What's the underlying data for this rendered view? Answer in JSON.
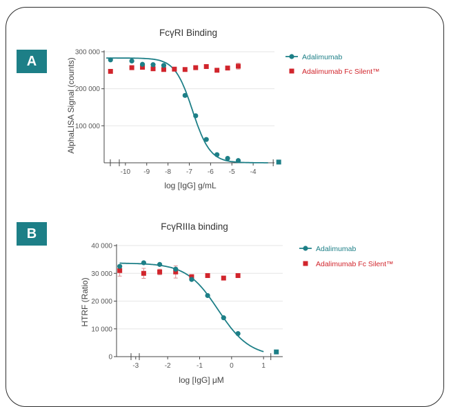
{
  "panels": {
    "a_label": "A",
    "b_label": "B"
  },
  "colors": {
    "badge": "#1d7f87",
    "teal": "#1d7f87",
    "red": "#d1252c"
  },
  "chart_data": [
    {
      "id": "A",
      "type": "scatter",
      "title": "FcγRI Binding",
      "xlabel": "log [IgG] g/mL",
      "ylabel": "AlphaLISA Signal (counts)",
      "xlim": [
        -11,
        -3
      ],
      "ylim": [
        0,
        300000
      ],
      "xticks": [
        -10,
        -9,
        -8,
        -7,
        -6,
        -5,
        -4
      ],
      "yticks": [
        100000,
        200000,
        300000
      ],
      "ytick_labels": [
        "100 000",
        "200 000",
        "300 000"
      ],
      "grid": true,
      "legend": "top-right",
      "series": [
        {
          "name": "Adalimumab",
          "marker": "circle",
          "fit_curve": true,
          "x": [
            -10.7,
            -9.7,
            -9.2,
            -8.7,
            -8.2,
            -7.2,
            -6.7,
            -6.2,
            -5.7,
            -5.2,
            -4.7
          ],
          "y": [
            278000,
            275000,
            266000,
            265000,
            263000,
            182000,
            127000,
            63000,
            22000,
            12000,
            6000
          ],
          "baseline_point": {
            "x": -2.8,
            "y": 2000
          }
        },
        {
          "name": "Adalimumab Fc Silent™",
          "marker": "square",
          "x": [
            -10.7,
            -9.7,
            -9.2,
            -8.7,
            -8.2,
            -7.7,
            -7.2,
            -6.7,
            -6.2,
            -5.7,
            -5.2,
            -4.7
          ],
          "y": [
            247000,
            257000,
            258000,
            254000,
            252000,
            253000,
            252000,
            257000,
            260000,
            250000,
            256000,
            261000
          ],
          "error": [
            0,
            3000,
            0,
            0,
            0,
            0,
            0,
            0,
            0,
            0,
            0,
            8000
          ]
        }
      ]
    },
    {
      "id": "B",
      "type": "scatter",
      "title": "FcγRIIIa binding",
      "xlabel": "log [IgG] μM",
      "ylabel": "HTRF (Ratio)",
      "xlim": [
        -3.6,
        1.6
      ],
      "ylim": [
        0,
        40000
      ],
      "xticks": [
        -3,
        -2,
        -1,
        0,
        1
      ],
      "yticks": [
        0,
        10000,
        20000,
        30000,
        40000
      ],
      "ytick_labels": [
        "0",
        "10 000",
        "20 000",
        "30 000",
        "40 000"
      ],
      "grid": true,
      "legend": "top-right",
      "series": [
        {
          "name": "Adalimumab",
          "marker": "circle",
          "fit_curve": true,
          "x": [
            -3.5,
            -2.75,
            -2.25,
            -1.75,
            -1.25,
            -0.75,
            -0.25,
            0.2
          ],
          "y": [
            32500,
            33800,
            33200,
            31500,
            27800,
            22000,
            14000,
            8300
          ],
          "baseline_point": {
            "x": 1.4,
            "y": 1700
          }
        },
        {
          "name": "Adalimumab Fc Silent™",
          "marker": "square",
          "x": [
            -3.5,
            -2.75,
            -2.25,
            -1.75,
            -1.25,
            -0.75,
            -0.25,
            0.2
          ],
          "y": [
            31000,
            30000,
            30500,
            30500,
            28800,
            29200,
            28300,
            29200
          ],
          "error": [
            2000,
            1800,
            1000,
            2200,
            500,
            0,
            400,
            0
          ]
        }
      ]
    }
  ]
}
